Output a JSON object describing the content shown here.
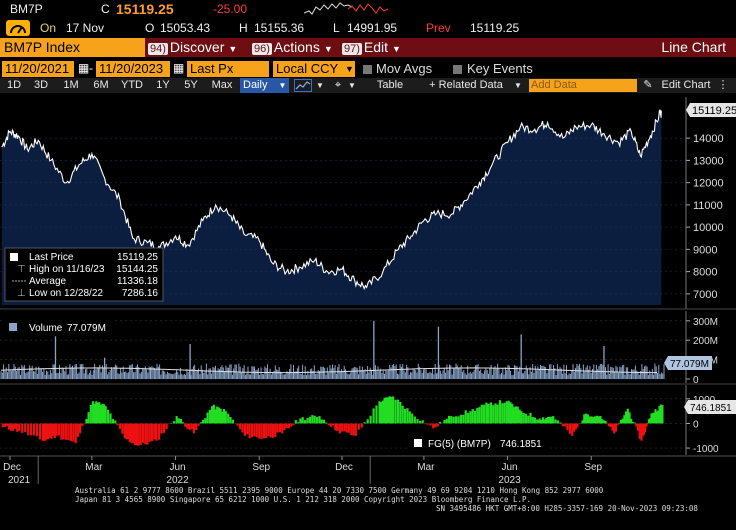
{
  "quote": {
    "ticker": "BM7P",
    "c_label": "C",
    "last": "15119.25",
    "change": "-25.00",
    "on_label": "On",
    "date": "17 Nov",
    "o_label": "O",
    "open": "15053.43",
    "h_label": "H",
    "high": "15155.36",
    "l_label": "L",
    "low": "14991.95",
    "prev_label": "Prev",
    "prev": "15119.25"
  },
  "header": {
    "security": "BM7P Index",
    "menus": [
      {
        "num": "94)",
        "label": "Discover"
      },
      {
        "num": "96)",
        "label": "Actions"
      },
      {
        "num": "97)",
        "label": "Edit"
      }
    ],
    "chart_type": "Line Chart"
  },
  "controls": {
    "start_date": "11/20/2021",
    "end_date": "11/20/2023",
    "field": "Last Px",
    "currency": "Local CCY",
    "mov_avgs": "Mov Avgs",
    "key_events": "Key Events"
  },
  "toolbar": {
    "periods": [
      "1D",
      "3D",
      "1M",
      "6M",
      "YTD",
      "1Y",
      "5Y",
      "Max"
    ],
    "frequency": "Daily",
    "table": "Table",
    "related": "+ Related Data",
    "add_data": "Add Data",
    "edit_chart": "Edit Chart"
  },
  "legend": {
    "rows": [
      {
        "label": "Last Price",
        "value": "15119.25"
      },
      {
        "label": "High on 11/16/23",
        "value": "15144.25"
      },
      {
        "label": "Average",
        "value": "11336.18"
      },
      {
        "label": "Low on 12/28/22",
        "value": "7286.16"
      }
    ],
    "volume_label": "Volume",
    "volume_value": "77.079M",
    "fg_label": "FG(5) (BM7P)",
    "fg_value": "746.1851"
  },
  "badges": {
    "price": "15119.25",
    "volume": "77.079M",
    "fg": "746.1851"
  },
  "footer": {
    "line1": "Australia 61 2 9777 8600 Brazil 5511 2395 9000 Europe 44 20 7330 7500 Germany 49 69 9204 1210 Hong Kong 852 2977 6000",
    "line2": "Japan 81 3 4565 8900         Singapore 65 6212 1000          U.S. 1 212 318 2000           Copyright 2023 Bloomberg Finance L.P.",
    "line3": "SN 3495486 HKT  GMT+8:00 H285-3357-169 20-Nov-2023 09:23:08"
  },
  "colors": {
    "price_fill": "#0b1e40",
    "price_line": "#ffffff",
    "volume_bar": "#8aa4c8",
    "fg_positive": "#22dd22",
    "fg_negative": "#ee1111",
    "header_bg": "#6e0d12",
    "accent_orange": "#f6a31b"
  },
  "chart_data": [
    {
      "type": "line",
      "title": "BM7P Index",
      "series": [
        {
          "name": "Last Price",
          "points": [
            [
              "2021-11-22",
              13600
            ],
            [
              "2021-12-01",
              14300
            ],
            [
              "2021-12-10",
              14100
            ],
            [
              "2021-12-20",
              13500
            ],
            [
              "2022-01-01",
              13900
            ],
            [
              "2022-01-15",
              13000
            ],
            [
              "2022-02-01",
              12000
            ],
            [
              "2022-02-15",
              12800
            ],
            [
              "2022-03-01",
              13300
            ],
            [
              "2022-03-15",
              12200
            ],
            [
              "2022-04-01",
              11200
            ],
            [
              "2022-04-15",
              9500
            ],
            [
              "2022-05-01",
              9300
            ],
            [
              "2022-05-15",
              9100
            ],
            [
              "2022-06-01",
              9600
            ],
            [
              "2022-06-15",
              9200
            ],
            [
              "2022-07-01",
              10300
            ],
            [
              "2022-07-15",
              11000
            ],
            [
              "2022-08-01",
              10500
            ],
            [
              "2022-08-15",
              9700
            ],
            [
              "2022-09-01",
              9400
            ],
            [
              "2022-09-15",
              8400
            ],
            [
              "2022-10-01",
              8000
            ],
            [
              "2022-10-15",
              8200
            ],
            [
              "2022-11-01",
              8500
            ],
            [
              "2022-11-15",
              8000
            ],
            [
              "2022-12-01",
              8100
            ],
            [
              "2022-12-15",
              7600
            ],
            [
              "2022-12-28",
              7286
            ],
            [
              "2023-01-15",
              8000
            ],
            [
              "2023-02-01",
              9000
            ],
            [
              "2023-02-15",
              9600
            ],
            [
              "2023-03-01",
              10300
            ],
            [
              "2023-03-15",
              10600
            ],
            [
              "2023-04-01",
              10600
            ],
            [
              "2023-04-15",
              11200
            ],
            [
              "2023-05-01",
              12000
            ],
            [
              "2023-05-15",
              12800
            ],
            [
              "2023-06-01",
              13800
            ],
            [
              "2023-06-15",
              14500
            ],
            [
              "2023-07-01",
              14400
            ],
            [
              "2023-07-15",
              14700
            ],
            [
              "2023-08-01",
              14000
            ],
            [
              "2023-08-15",
              14500
            ],
            [
              "2023-09-01",
              14600
            ],
            [
              "2023-09-15",
              14200
            ],
            [
              "2023-10-01",
              13800
            ],
            [
              "2023-10-15",
              14300
            ],
            [
              "2023-10-25",
              13200
            ],
            [
              "2023-11-05",
              14100
            ],
            [
              "2023-11-16",
              15144
            ],
            [
              "2023-11-17",
              15119
            ]
          ]
        }
      ],
      "y_ticks": [
        7000,
        8000,
        9000,
        10000,
        11000,
        12000,
        13000,
        14000
      ],
      "ylim": [
        6500,
        15400
      ]
    },
    {
      "type": "bar",
      "title": "Volume",
      "unit": "M",
      "y_ticks": [
        "0",
        "100M",
        "200M",
        "300M"
      ],
      "ylim": [
        0,
        330
      ],
      "typical_range": [
        20,
        80
      ],
      "spikes": [
        [
          "2022-01-20",
          220
        ],
        [
          "2022-03-15",
          110
        ],
        [
          "2022-06-17",
          180
        ],
        [
          "2023-01-05",
          300
        ],
        [
          "2023-03-17",
          270
        ],
        [
          "2023-06-16",
          230
        ],
        [
          "2023-09-15",
          170
        ]
      ],
      "last": 77.079
    },
    {
      "type": "bar",
      "title": "FG(5) (BM7P)",
      "y_ticks": [
        -1000,
        0,
        1000
      ],
      "ylim": [
        -1200,
        1400
      ],
      "series": [
        {
          "name": "FG(5) (BM7P)",
          "points": [
            [
              "2021-11-22",
              -150
            ],
            [
              "2021-12-10",
              -300
            ],
            [
              "2022-01-05",
              -700
            ],
            [
              "2022-01-20",
              -500
            ],
            [
              "2022-02-10",
              -800
            ],
            [
              "2022-03-01",
              900
            ],
            [
              "2022-03-15",
              700
            ],
            [
              "2022-04-05",
              -600
            ],
            [
              "2022-04-20",
              -900
            ],
            [
              "2022-05-10",
              -700
            ],
            [
              "2022-06-01",
              300
            ],
            [
              "2022-06-20",
              -400
            ],
            [
              "2022-07-10",
              700
            ],
            [
              "2022-07-25",
              500
            ],
            [
              "2022-08-15",
              -500
            ],
            [
              "2022-09-05",
              -600
            ],
            [
              "2022-09-25",
              -400
            ],
            [
              "2022-10-15",
              200
            ],
            [
              "2022-11-05",
              300
            ],
            [
              "2022-11-25",
              -300
            ],
            [
              "2022-12-15",
              -500
            ],
            [
              "2023-01-10",
              900
            ],
            [
              "2023-01-25",
              1100
            ],
            [
              "2023-02-15",
              400
            ],
            [
              "2023-03-10",
              -200
            ],
            [
              "2023-03-30",
              300
            ],
            [
              "2023-04-20",
              500
            ],
            [
              "2023-05-10",
              800
            ],
            [
              "2023-05-30",
              900
            ],
            [
              "2023-06-15",
              500
            ],
            [
              "2023-07-05",
              200
            ],
            [
              "2023-07-20",
              300
            ],
            [
              "2023-08-10",
              -500
            ],
            [
              "2023-08-25",
              400
            ],
            [
              "2023-09-10",
              300
            ],
            [
              "2023-09-25",
              -400
            ],
            [
              "2023-10-10",
              600
            ],
            [
              "2023-10-25",
              -700
            ],
            [
              "2023-11-05",
              400
            ],
            [
              "2023-11-17",
              746
            ]
          ]
        }
      ]
    }
  ],
  "x_axis": {
    "labels": [
      "Dec",
      "Mar",
      "Jun",
      "Sep",
      "Dec",
      "Mar",
      "Jun",
      "Sep"
    ],
    "years": [
      "2021",
      "2022",
      "2023"
    ]
  }
}
